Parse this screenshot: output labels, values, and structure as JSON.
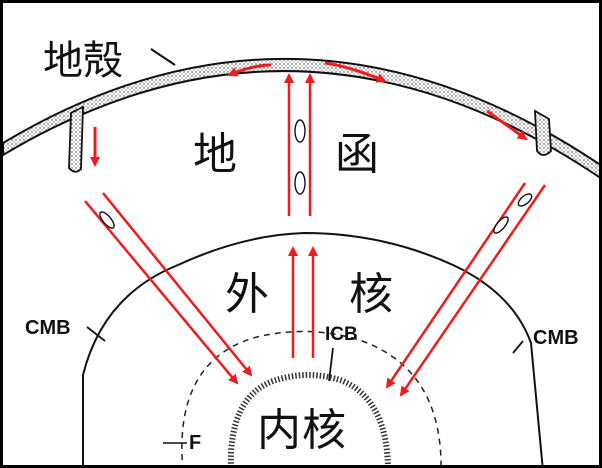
{
  "labels": {
    "crust": "地殻",
    "mantle_left": "地",
    "mantle_right": "函",
    "outer_core_left": "外",
    "outer_core_right": "核",
    "inner_core": "内核",
    "cmb_left": "CMB",
    "cmb_right": "CMB",
    "icb": "ICB",
    "f_zone": "F"
  },
  "colors": {
    "arrow": "#ee1c1c",
    "line": "#111111",
    "background": "#ffffff"
  }
}
